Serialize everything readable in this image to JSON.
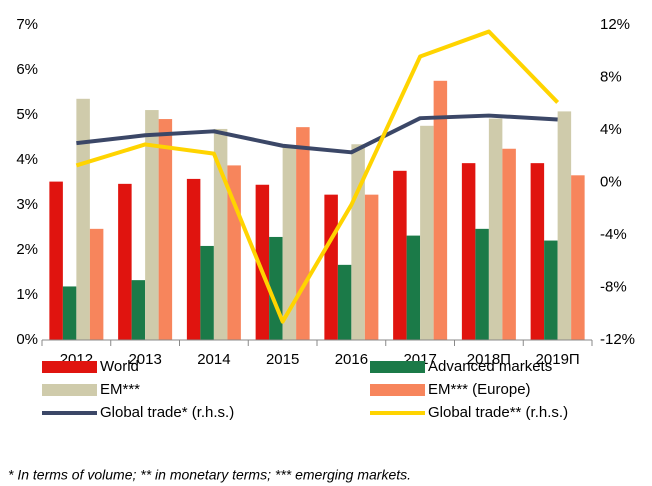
{
  "chart_data": {
    "type": "bar",
    "categories": [
      "2012",
      "2013",
      "2014",
      "2015",
      "2016",
      "2017",
      "2018П",
      "2019П"
    ],
    "series": [
      {
        "name": "World",
        "color": "#e0140f",
        "values": [
          3.52,
          3.47,
          3.58,
          3.45,
          3.23,
          3.76,
          3.93,
          3.93
        ]
      },
      {
        "name": "Advanced markets",
        "color": "#1b7a48",
        "values": [
          1.19,
          1.33,
          2.09,
          2.29,
          1.67,
          2.32,
          2.47,
          2.21
        ]
      },
      {
        "name": "EM***",
        "color": "#cfcbab",
        "values": [
          5.36,
          5.11,
          4.69,
          4.3,
          4.35,
          4.76,
          4.92,
          5.08
        ]
      },
      {
        "name": "EM*** (Europe)",
        "color": "#f7855c",
        "values": [
          2.47,
          4.91,
          3.88,
          4.73,
          3.23,
          5.76,
          4.25,
          3.66
        ]
      },
      {
        "name": "Global trade* (r.h.s.)",
        "type": "line",
        "axis": "y2",
        "color": "#3b4767",
        "values": [
          3.0,
          3.6,
          3.9,
          2.8,
          2.3,
          4.9,
          5.1,
          4.8
        ]
      },
      {
        "name": "Global trade** (r.h.s.)",
        "type": "line",
        "axis": "y2",
        "color": "#ffd400",
        "values": [
          1.3,
          2.9,
          2.2,
          -10.6,
          -1.7,
          9.6,
          11.5,
          6.1
        ]
      }
    ],
    "ylim": [
      0,
      7
    ],
    "yticks": [
      {
        "value": 0,
        "label": "0%"
      },
      {
        "value": 1,
        "label": "1%"
      },
      {
        "value": 2,
        "label": "2%"
      },
      {
        "value": 3,
        "label": "3%"
      },
      {
        "value": 4,
        "label": "4%"
      },
      {
        "value": 5,
        "label": "5%"
      },
      {
        "value": 6,
        "label": "6%"
      },
      {
        "value": 7,
        "label": "7%"
      }
    ],
    "y2lim": [
      -12,
      12
    ],
    "y2ticks": [
      {
        "value": -12,
        "label": "-12%"
      },
      {
        "value": -8,
        "label": "-8%"
      },
      {
        "value": -4,
        "label": "-4%"
      },
      {
        "value": 0,
        "label": "0%"
      },
      {
        "value": 4,
        "label": "4%"
      },
      {
        "value": 8,
        "label": "8%"
      },
      {
        "value": 12,
        "label": "12%"
      }
    ],
    "annotation": "* In terms of volume; ** in monetary terms; *** emerging markets."
  }
}
